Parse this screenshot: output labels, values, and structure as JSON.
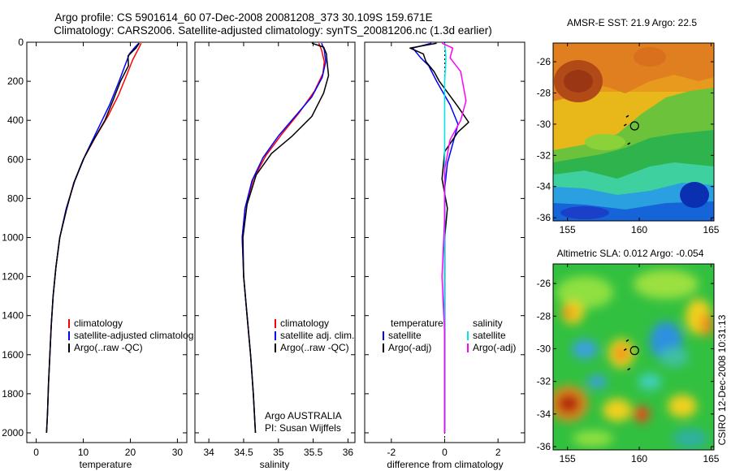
{
  "header": {
    "line1": "Argo profile: CS 5901614_60 07-Dec-2008 20081208_373 30.109S 159.671E",
    "line2": "Climatology: CARS2006. Satellite-adjusted climatology: synTS_20081206.nc (1.3d earlier)"
  },
  "side_label": "CSIRO 12-Dec-2008 10:31:13",
  "colors": {
    "clim": "#ff0000",
    "sat": "#0000ff",
    "argo": "#000000",
    "sat_sal": "#00e5ee",
    "argo_sal": "#ff00ff"
  },
  "chart_data": [
    {
      "type": "line",
      "id": "temperature",
      "xlabel": "temperature",
      "xlim": [
        -2,
        32
      ],
      "ylim": [
        0,
        2050
      ],
      "y_reversed": true,
      "xticks": [
        0,
        10,
        20,
        30
      ],
      "yticks": [
        0,
        200,
        400,
        600,
        800,
        1000,
        1200,
        1400,
        1600,
        1800,
        2000
      ],
      "legend": [
        "climatology",
        "satellite-adjusted climatolog",
        "Argo(..raw -QC)"
      ],
      "series": [
        {
          "name": "climatology",
          "color": "#ff0000",
          "points": [
            [
              22.3,
              5
            ],
            [
              21.8,
              30
            ],
            [
              20.5,
              90
            ],
            [
              19.2,
              170
            ],
            [
              17.5,
              270
            ],
            [
              15.2,
              380
            ],
            [
              12.5,
              490
            ],
            [
              10.0,
              600
            ],
            [
              8.0,
              720
            ],
            [
              6.3,
              860
            ],
            [
              5.0,
              1000
            ],
            [
              4.2,
              1150
            ],
            [
              3.6,
              1300
            ],
            [
              3.2,
              1450
            ],
            [
              2.9,
              1600
            ],
            [
              2.6,
              1750
            ],
            [
              2.4,
              1900
            ],
            [
              2.2,
              2000
            ]
          ]
        },
        {
          "name": "satellite-adjusted climatolog",
          "color": "#0000ff",
          "points": [
            [
              21.8,
              5
            ],
            [
              21.0,
              25
            ],
            [
              19.8,
              60
            ],
            [
              19.0,
              110
            ],
            [
              17.6,
              200
            ],
            [
              15.6,
              320
            ],
            [
              13.0,
              450
            ],
            [
              10.4,
              580
            ],
            [
              8.2,
              710
            ],
            [
              6.4,
              850
            ],
            [
              5.0,
              1000
            ],
            [
              4.2,
              1150
            ],
            [
              3.6,
              1300
            ],
            [
              3.2,
              1450
            ],
            [
              2.9,
              1600
            ],
            [
              2.6,
              1750
            ],
            [
              2.4,
              1900
            ],
            [
              2.2,
              2000
            ]
          ]
        },
        {
          "name": "Argo(..raw -QC)",
          "color": "#000000",
          "points": [
            [
              21.9,
              5
            ],
            [
              21.2,
              30
            ],
            [
              19.5,
              70
            ],
            [
              19.6,
              120
            ],
            [
              17.9,
              200
            ],
            [
              16.3,
              300
            ],
            [
              14.6,
              400
            ],
            [
              12.2,
              500
            ],
            [
              10.0,
              600
            ],
            [
              8.0,
              720
            ],
            [
              6.4,
              860
            ],
            [
              5.0,
              1000
            ],
            [
              4.2,
              1150
            ],
            [
              3.6,
              1300
            ],
            [
              3.2,
              1450
            ],
            [
              2.9,
              1600
            ],
            [
              2.6,
              1750
            ],
            [
              2.4,
              1900
            ],
            [
              2.2,
              2000
            ]
          ]
        }
      ]
    },
    {
      "type": "line",
      "id": "salinity",
      "xlabel": "salinity",
      "xlim": [
        33.8,
        36.1
      ],
      "ylim": [
        0,
        2050
      ],
      "y_reversed": true,
      "xticks": [
        34,
        34.5,
        35,
        35.5,
        36
      ],
      "legend": [
        "climatology",
        "satellite adj. clim.",
        "Argo(..raw -QC)"
      ],
      "annotation": [
        "Argo AUSTRALIA",
        "PI: Susan Wijffels"
      ],
      "series": [
        {
          "name": "climatology",
          "color": "#ff0000",
          "points": [
            [
              35.58,
              5
            ],
            [
              35.62,
              40
            ],
            [
              35.66,
              100
            ],
            [
              35.64,
              160
            ],
            [
              35.52,
              250
            ],
            [
              35.3,
              360
            ],
            [
              35.05,
              470
            ],
            [
              34.82,
              580
            ],
            [
              34.64,
              700
            ],
            [
              34.52,
              850
            ],
            [
              34.48,
              1000
            ],
            [
              34.5,
              1200
            ],
            [
              34.55,
              1400
            ],
            [
              34.6,
              1600
            ],
            [
              34.64,
              1800
            ],
            [
              34.67,
              2000
            ]
          ]
        },
        {
          "name": "satellite adj. clim.",
          "color": "#0000ff",
          "points": [
            [
              35.62,
              5
            ],
            [
              35.66,
              40
            ],
            [
              35.68,
              100
            ],
            [
              35.63,
              180
            ],
            [
              35.48,
              280
            ],
            [
              35.24,
              380
            ],
            [
              35.0,
              480
            ],
            [
              34.78,
              590
            ],
            [
              34.62,
              710
            ],
            [
              34.52,
              850
            ],
            [
              34.48,
              1000
            ],
            [
              34.5,
              1200
            ],
            [
              34.55,
              1400
            ],
            [
              34.6,
              1600
            ],
            [
              34.64,
              1800
            ],
            [
              34.67,
              2000
            ]
          ]
        },
        {
          "name": "Argo(..raw -QC)",
          "color": "#000000",
          "points": [
            [
              35.48,
              5
            ],
            [
              35.65,
              25
            ],
            [
              35.69,
              60
            ],
            [
              35.7,
              100
            ],
            [
              35.72,
              170
            ],
            [
              35.65,
              260
            ],
            [
              35.48,
              380
            ],
            [
              35.2,
              480
            ],
            [
              34.9,
              570
            ],
            [
              34.68,
              680
            ],
            [
              34.55,
              830
            ],
            [
              34.49,
              1000
            ],
            [
              34.5,
              1200
            ],
            [
              34.55,
              1400
            ],
            [
              34.6,
              1600
            ],
            [
              34.64,
              1800
            ],
            [
              34.67,
              2000
            ]
          ]
        }
      ]
    },
    {
      "type": "line",
      "id": "difference",
      "xlabel": "difference from climatology",
      "xlim": [
        -3,
        3
      ],
      "ylim": [
        0,
        2050
      ],
      "y_reversed": true,
      "xticks": [
        -2,
        0,
        2
      ],
      "legend_left_title": "temperature",
      "legend_left": [
        "satellite",
        "Argo(-adj)"
      ],
      "legend_right_title": "salinity",
      "legend_right": [
        "satellite",
        "Argo(-adj)"
      ],
      "series": [
        {
          "name": "satellite",
          "group": "temperature",
          "color": "#0000ff",
          "points": [
            [
              -0.5,
              5
            ],
            [
              -1.2,
              30
            ],
            [
              -0.9,
              80
            ],
            [
              -0.6,
              120
            ],
            [
              -0.3,
              200
            ],
            [
              0.2,
              320
            ],
            [
              0.5,
              420
            ],
            [
              0.3,
              520
            ],
            [
              0.1,
              620
            ],
            [
              0.0,
              750
            ],
            [
              0.0,
              900
            ],
            [
              0.0,
              1100
            ],
            [
              0.0,
              1400
            ],
            [
              0.0,
              1700
            ],
            [
              0.0,
              2000
            ]
          ]
        },
        {
          "name": "Argo(-adj)",
          "group": "temperature",
          "color": "#000000",
          "points": [
            [
              -0.3,
              5
            ],
            [
              -1.3,
              30
            ],
            [
              -0.8,
              60
            ],
            [
              -0.7,
              100
            ],
            [
              -0.4,
              150
            ],
            [
              -0.2,
              200
            ],
            [
              0.5,
              330
            ],
            [
              0.9,
              410
            ],
            [
              0.5,
              460
            ],
            [
              0.0,
              560
            ],
            [
              -0.1,
              700
            ],
            [
              0.1,
              850
            ],
            [
              0.0,
              1000
            ],
            [
              0.0,
              1200
            ],
            [
              0.0,
              1400
            ],
            [
              0.0,
              1700
            ],
            [
              0.0,
              2000
            ]
          ]
        },
        {
          "name": "satellite",
          "group": "salinity",
          "color": "#00e5ee",
          "points": [
            [
              0.0,
              5
            ],
            [
              0.05,
              80
            ],
            [
              0.0,
              200
            ],
            [
              0.0,
              400
            ],
            [
              0.0,
              700
            ],
            [
              0.0,
              1000
            ],
            [
              0.0,
              1400
            ],
            [
              0.0,
              2000
            ]
          ]
        },
        {
          "name": "Argo(-adj)",
          "group": "salinity",
          "color": "#ff00ff",
          "points": [
            [
              -0.1,
              5
            ],
            [
              0.3,
              30
            ],
            [
              0.2,
              80
            ],
            [
              0.6,
              150
            ],
            [
              0.8,
              300
            ],
            [
              0.6,
              400
            ],
            [
              0.2,
              500
            ],
            [
              0.0,
              650
            ],
            [
              0.0,
              900
            ],
            [
              -0.1,
              1200
            ],
            [
              0.0,
              1500
            ],
            [
              0.0,
              1800
            ],
            [
              0.0,
              2000
            ]
          ]
        }
      ]
    },
    {
      "type": "heatmap",
      "id": "sst_map",
      "title": "AMSR-E SST: 21.9 Argo: 22.5",
      "xlim": [
        154,
        165.2
      ],
      "ylim": [
        -36.2,
        -24.8
      ],
      "xticks": [
        155,
        160,
        165
      ],
      "yticks": [
        -26,
        -28,
        -30,
        -32,
        -34,
        -36
      ],
      "float_position": {
        "lon": 159.671,
        "lat": -30.109
      },
      "track": [
        [
          159.2,
          -29.5
        ],
        [
          159.05,
          -30.05
        ],
        [
          159.3,
          -31.25
        ]
      ]
    },
    {
      "type": "heatmap",
      "id": "sla_map",
      "title": "Altimetric SLA: 0.012 Argo: -0.054",
      "xlim": [
        154,
        165.2
      ],
      "ylim": [
        -36.2,
        -24.8
      ],
      "xticks": [
        155,
        160,
        165
      ],
      "yticks": [
        -26,
        -28,
        -30,
        -32,
        -34,
        -36
      ],
      "float_position": {
        "lon": 159.671,
        "lat": -30.109
      },
      "track": [
        [
          159.2,
          -29.5
        ],
        [
          159.05,
          -30.05
        ],
        [
          159.3,
          -31.25
        ]
      ]
    }
  ]
}
